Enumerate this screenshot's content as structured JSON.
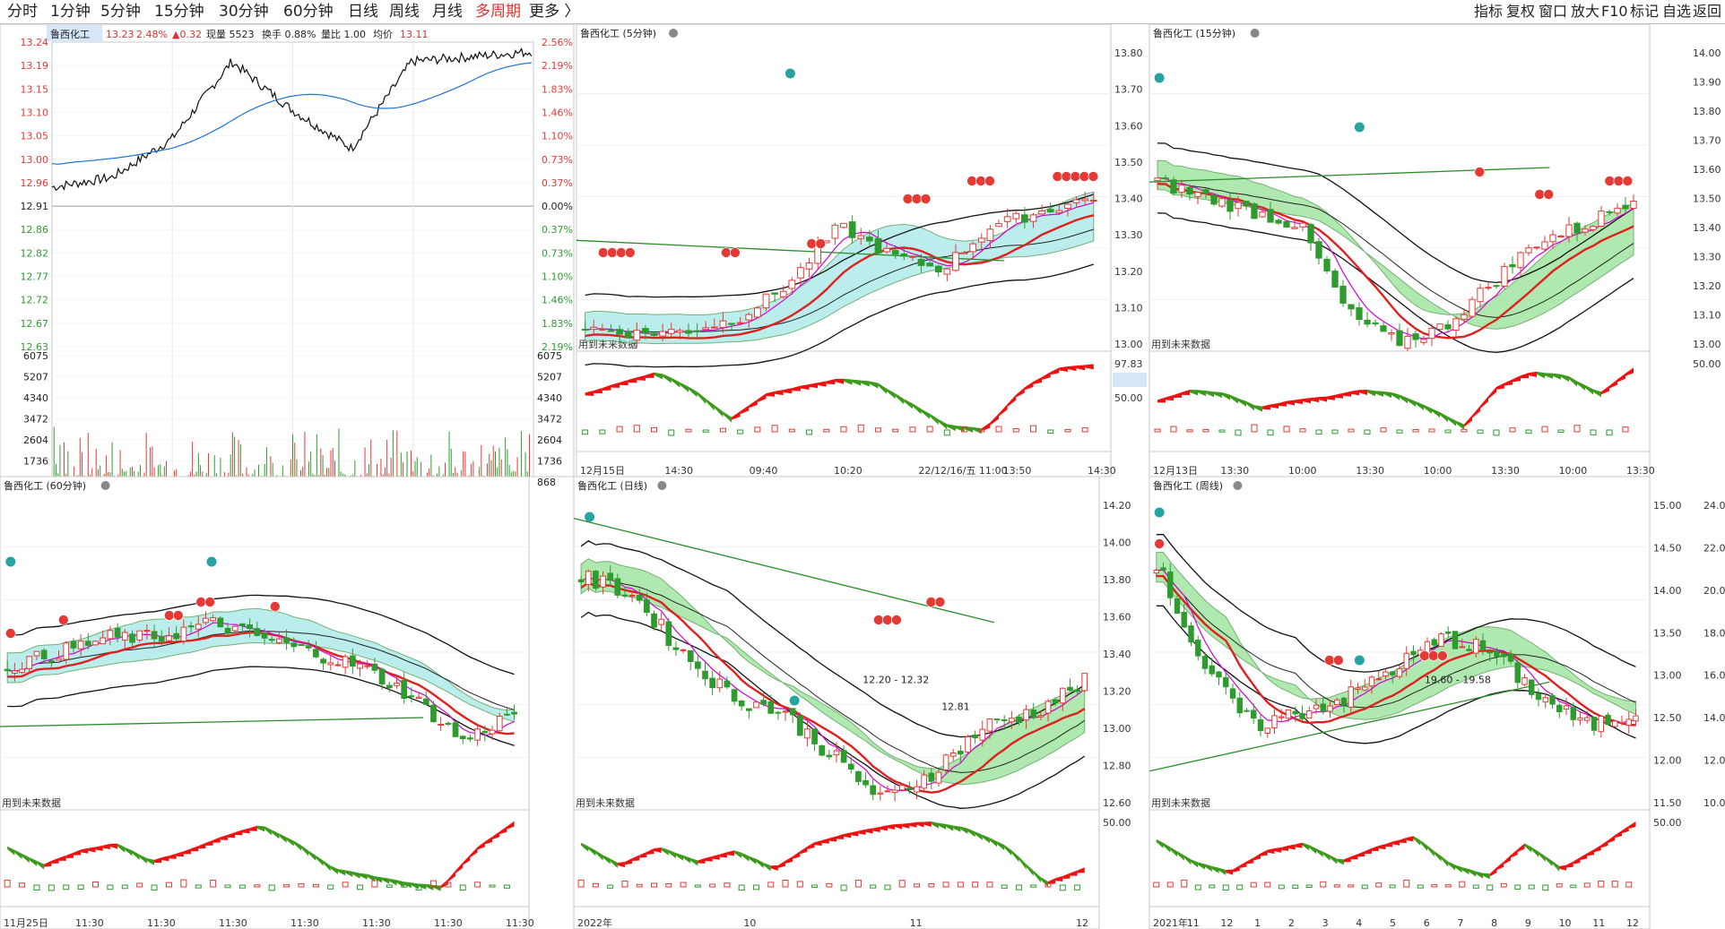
{
  "toolbar": {
    "periods": [
      "分时",
      "1分钟",
      "5分钟",
      "15分钟",
      "30分钟",
      "60分钟",
      "日线",
      "周线",
      "月线",
      "多周期",
      "更多 〉"
    ],
    "active_index": 9,
    "right_buttons": [
      "指标",
      "复权",
      "窗口",
      "放大",
      "F10",
      "标记",
      "自选",
      "返回"
    ]
  },
  "colors": {
    "up": "#e53935",
    "down": "#2e9b2e",
    "accent": "#e03030",
    "line_avg": "#1e73d2",
    "fill_green": "#8fe08f",
    "fill_cyan": "#9fe6e6"
  },
  "timeshare": {
    "stock_name": "鲁西化工",
    "price": "13.23",
    "change_pct": "2.48%",
    "change": "▲0.32",
    "volume_label": "现量 5523",
    "turnover_label": "换手 0.88%",
    "ratio_label": "量比 1.00",
    "avg_label": "均价",
    "avg_value": "13.11",
    "price_ticks": [
      "13.24",
      "13.19",
      "13.15",
      "13.10",
      "13.05",
      "13.00",
      "12.96",
      "12.91",
      "12.86",
      "12.82",
      "12.77",
      "12.72",
      "12.67",
      "12.63"
    ],
    "pct_ticks": [
      "2.56%",
      "2.19%",
      "1.83%",
      "1.46%",
      "1.10%",
      "0.73%",
      "0.37%",
      "0.00%",
      "0.37%",
      "0.73%",
      "1.10%",
      "1.46%",
      "1.83%",
      "2.19%"
    ],
    "vol_ticks": [
      "6075",
      "5207",
      "4340",
      "3472",
      "2604",
      "1736",
      "868"
    ]
  },
  "panels": [
    {
      "id": "p5",
      "title": "鲁西化工 (5分钟)",
      "price_ticks": [
        "13.80",
        "13.70",
        "13.60",
        "13.50",
        "13.40",
        "13.30",
        "13.20",
        "13.10",
        "13.00"
      ],
      "osc_ticks": [
        "97.83",
        "50.00"
      ],
      "note": "用到未来数据",
      "x_labels": [
        "12月15日",
        "14:30",
        "09:40",
        "10:20",
        "22/12/16/五 11:00",
        "13:50",
        "14:30"
      ],
      "chart_data": {
        "type": "candlestick",
        "indicator": "多周期K线叠加指标",
        "last_close": 13.23
      }
    },
    {
      "id": "p15",
      "title": "鲁西化工 (15分钟)",
      "price_ticks": [
        "14.00",
        "13.90",
        "13.80",
        "13.70",
        "13.60",
        "13.50",
        "13.40",
        "13.30",
        "13.20",
        "13.10",
        "13.00"
      ],
      "osc_ticks": [
        "50.00"
      ],
      "note": "用到未来数据",
      "x_labels": [
        "12月13日",
        "13:30",
        "10:00",
        "13:30",
        "10:00",
        "13:30",
        "10:00",
        "13:30"
      ],
      "chart_data": {
        "type": "candlestick",
        "last_close": 13.23
      }
    },
    {
      "id": "p60",
      "title": "鲁西化工 (60分钟)",
      "price_ticks": [],
      "osc_ticks": [],
      "note": "用到未来数据",
      "x_labels": [
        "11月25日",
        "11:30",
        "11:30",
        "11:30",
        "11:30",
        "11:30",
        "11:30",
        "11:30"
      ],
      "chart_data": {
        "type": "candlestick",
        "last_close": 13.23
      }
    },
    {
      "id": "pday",
      "title": "鲁西化工 (日线)",
      "price_ticks": [
        "14.20",
        "14.00",
        "13.80",
        "13.60",
        "13.40",
        "13.20",
        "13.00",
        "12.80",
        "12.60"
      ],
      "osc_ticks": [
        "50.00"
      ],
      "note": "用到未来数据",
      "annotations": [
        "12.20 - 12.32",
        "12.81"
      ],
      "x_labels": [
        "2022年",
        "10",
        "11",
        "12"
      ],
      "chart_data": {
        "type": "candlestick",
        "last_close": 13.23
      }
    },
    {
      "id": "pweek",
      "title": "鲁西化工 (周线)",
      "price_ticks": [
        "15.00",
        "14.50",
        "14.00",
        "13.50",
        "13.00",
        "12.50",
        "12.00",
        "11.50"
      ],
      "right_ticks": [
        "24.00",
        "22.00",
        "20.00",
        "18.00",
        "16.00",
        "14.00",
        "12.00",
        "10.00"
      ],
      "osc_ticks": [
        "50.00"
      ],
      "note": "用到未来数据",
      "annotations": [
        "19.60 - 19.58"
      ],
      "x_labels": [
        "2021年",
        "11",
        "12",
        "1",
        "2",
        "3",
        "4",
        "5",
        "6",
        "7",
        "8",
        "9",
        "10",
        "11",
        "12"
      ],
      "chart_data": {
        "type": "candlestick",
        "last_close": 13.23
      }
    }
  ]
}
